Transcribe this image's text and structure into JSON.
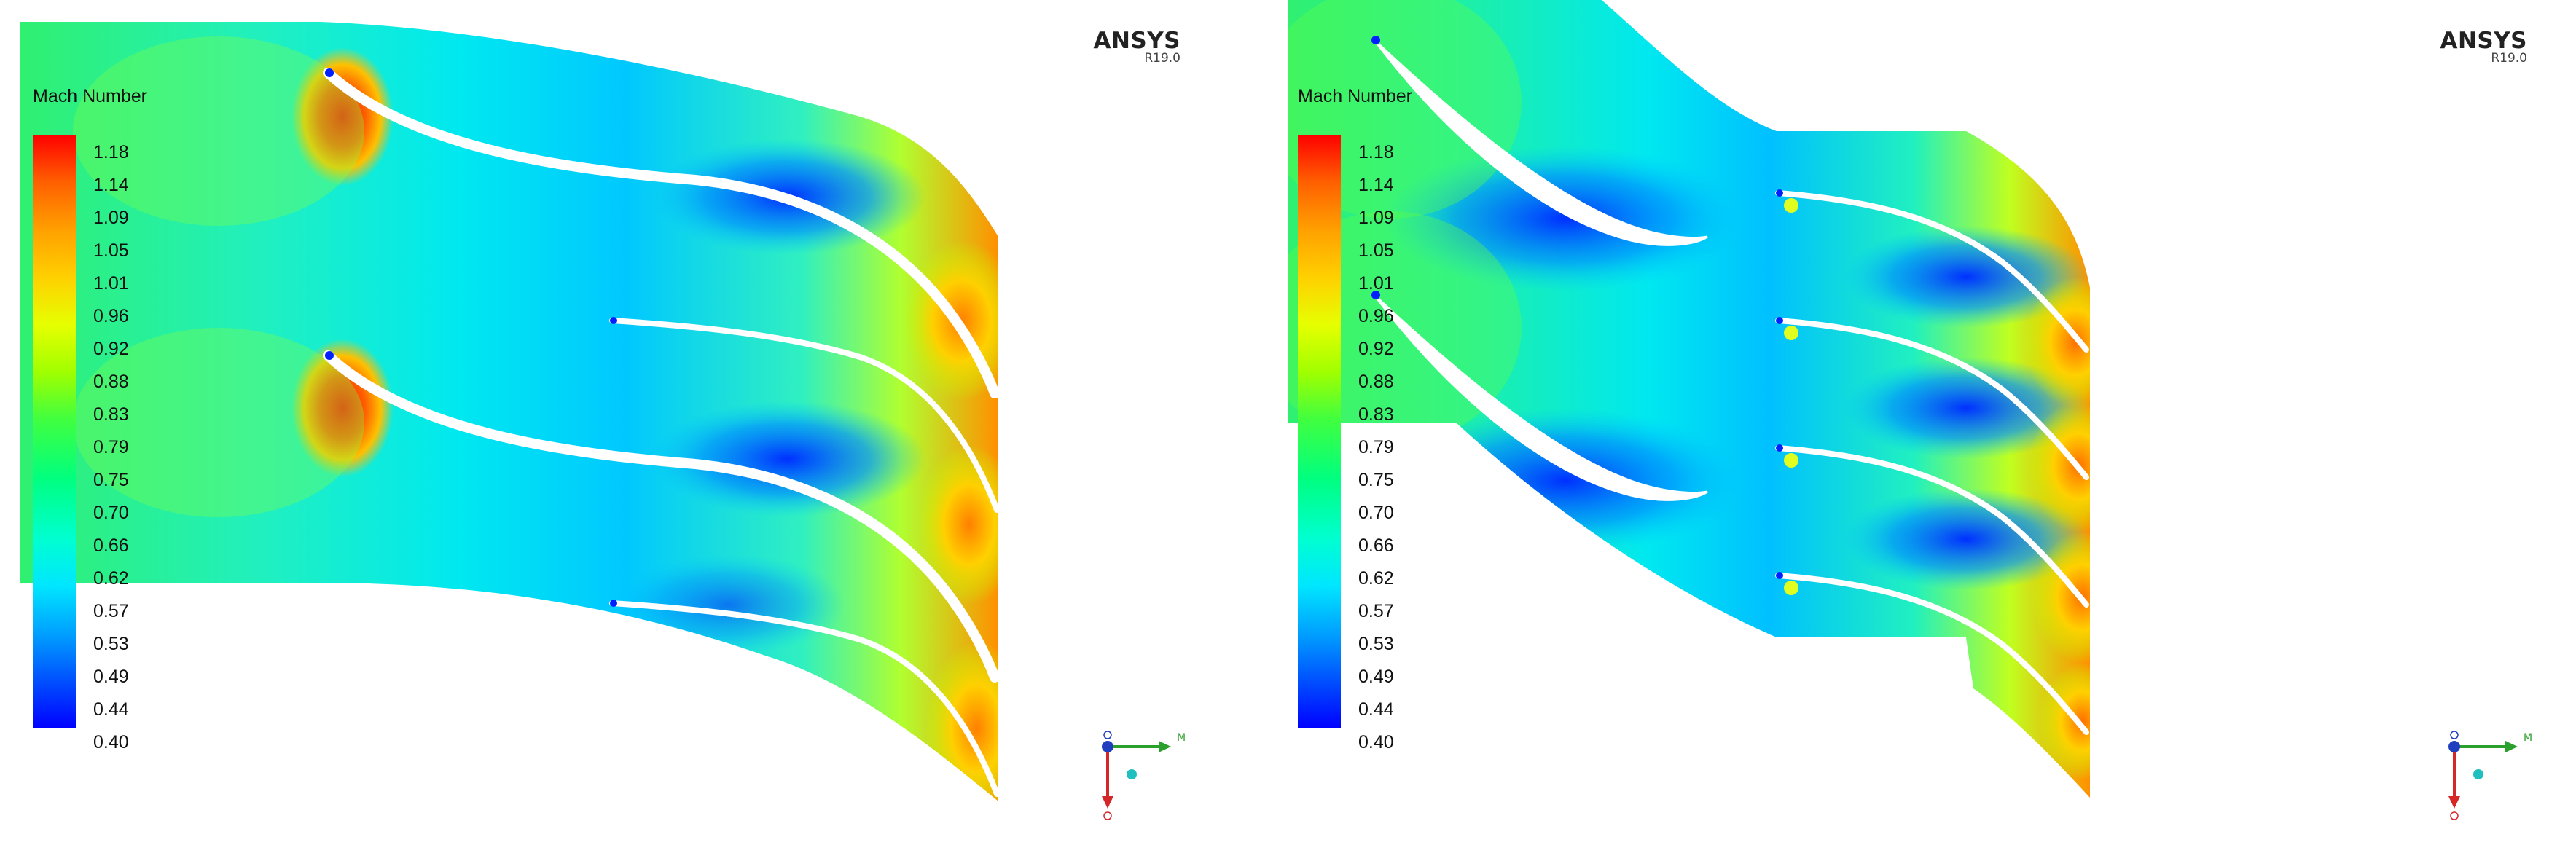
{
  "panels": [
    {
      "legend": {
        "title": "Mach Number",
        "ticks": [
          "1.18",
          "1.14",
          "1.09",
          "1.05",
          "1.01",
          "0.96",
          "0.92",
          "0.88",
          "0.83",
          "0.79",
          "0.75",
          "0.70",
          "0.66",
          "0.62",
          "0.57",
          "0.53",
          "0.49",
          "0.44",
          "0.40"
        ]
      },
      "brand": {
        "name": "ANSYS",
        "version": "R19.0"
      }
    },
    {
      "legend": {
        "title": "Mach Number",
        "ticks": [
          "1.18",
          "1.14",
          "1.09",
          "1.05",
          "1.01",
          "0.96",
          "0.92",
          "0.88",
          "0.83",
          "0.79",
          "0.75",
          "0.70",
          "0.66",
          "0.62",
          "0.57",
          "0.53",
          "0.49",
          "0.44",
          "0.40"
        ]
      },
      "brand": {
        "name": "ANSYS",
        "version": "R19.0"
      }
    }
  ],
  "colors": {
    "low": "#0000ff",
    "mid_low": "#00e6ff",
    "mid": "#40ff40",
    "mid_high": "#e6ff00",
    "high": "#ff0000",
    "triad_x": "#2ca02c",
    "triad_y": "#d62728",
    "triad_z": "#1f3fbf"
  },
  "icons": [
    "axis-triad-icon"
  ]
}
